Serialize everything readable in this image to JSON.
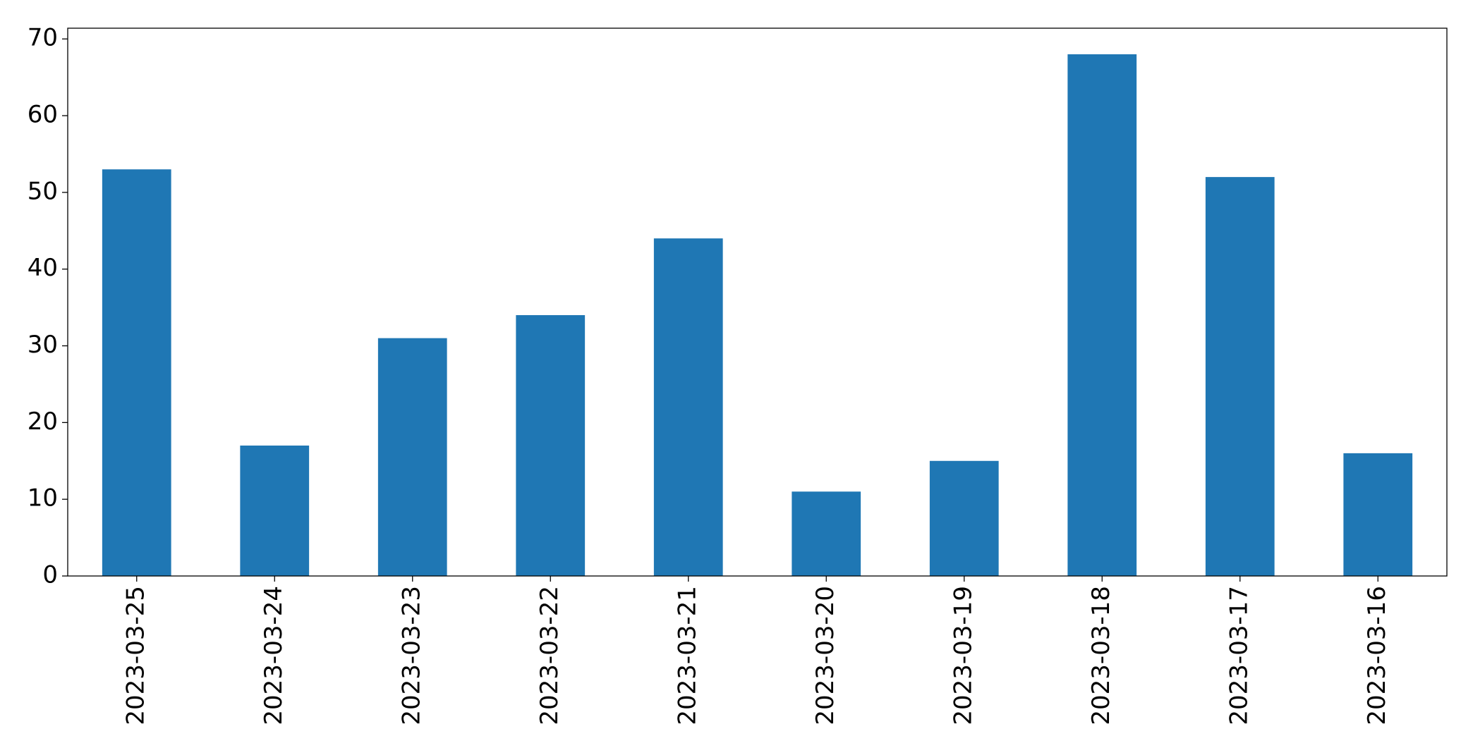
{
  "chart_data": {
    "type": "bar",
    "categories": [
      "2023-03-25",
      "2023-03-24",
      "2023-03-23",
      "2023-03-22",
      "2023-03-21",
      "2023-03-20",
      "2023-03-19",
      "2023-03-18",
      "2023-03-17",
      "2023-03-16"
    ],
    "values": [
      53,
      17,
      31,
      34,
      44,
      11,
      15,
      68,
      52,
      16
    ],
    "color": "#1f77b4",
    "ylim": [
      0,
      71.4
    ],
    "yticks": [
      0,
      10,
      20,
      30,
      40,
      50,
      60,
      70
    ],
    "grid": false
  }
}
